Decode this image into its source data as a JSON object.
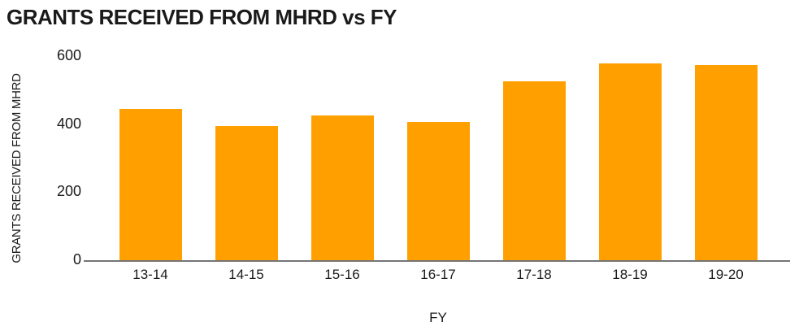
{
  "chart_data": {
    "type": "bar",
    "title": "GRANTS RECEIVED FROM MHRD vs FY",
    "xlabel": "FY",
    "ylabel": "GRANTS RECEIVED FROM MHRD",
    "categories": [
      "13-14",
      "14-15",
      "15-16",
      "16-17",
      "17-18",
      "18-19",
      "19-20"
    ],
    "values": [
      446,
      396,
      427,
      408,
      528,
      580,
      576
    ],
    "yticks": [
      0,
      200,
      400,
      600
    ],
    "ylim": [
      0,
      600
    ],
    "grid": false,
    "legend": "none",
    "bar_color": "#FFA000",
    "axis_line_color": "#757575",
    "text_color": "#1a1a1a"
  }
}
